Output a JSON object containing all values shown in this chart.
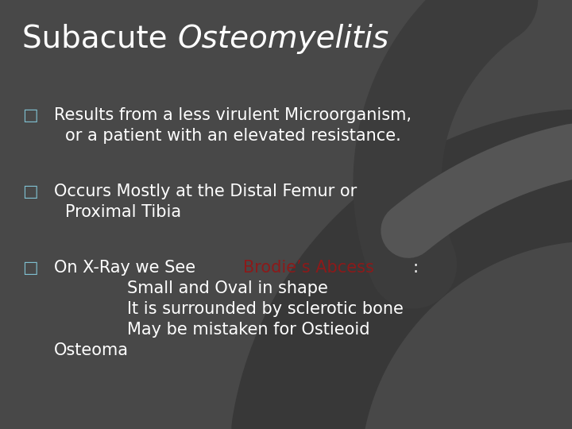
{
  "title_normal": "Subacute ",
  "title_italic": "Osteomyelitis",
  "bg_color": "#484848",
  "text_color": "#ffffff",
  "red_color": "#8b1a1a",
  "bullet_color": "#7fbfcf",
  "title_fontsize": 28,
  "body_fontsize": 15,
  "bullet_char": "□",
  "line1a": "Results from a less virulent Microorganism,",
  "line1b": "or a patient with an elevated resistance.",
  "line2a": "Occurs Mostly at the Distal Femur or",
  "line2b": "Proximal Tibia",
  "line3_before": "On X-Ray we See ",
  "line3_red": "Brodie’s Abcess",
  "line3_after": ":",
  "sub1": "Small and Oval in shape",
  "sub2": "It is surrounded by sclerotic bone",
  "sub3": "May be mistaken for Ostieoid",
  "last_line": "Osteoma"
}
